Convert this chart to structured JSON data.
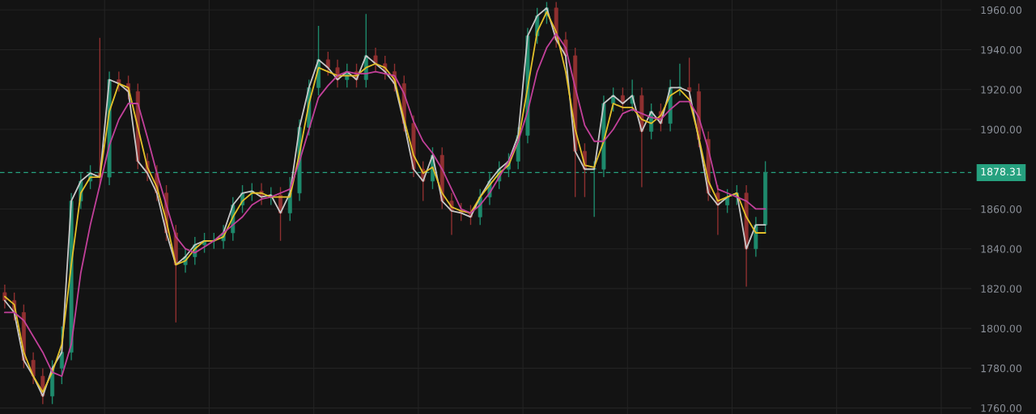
{
  "chart_data": {
    "type": "candlestick",
    "categories": [
      null,
      null,
      null,
      null,
      null,
      null,
      null,
      null,
      null,
      null,
      null,
      null,
      null,
      null,
      null,
      null,
      null,
      null,
      null,
      null,
      null,
      null,
      null,
      null,
      null,
      null,
      null,
      null,
      null,
      null,
      null,
      null,
      null,
      null,
      null,
      null,
      null,
      null,
      null,
      null,
      null,
      null,
      null,
      null,
      null,
      null,
      null,
      null,
      null,
      null,
      null,
      null,
      null,
      null,
      null,
      null,
      null,
      null,
      null,
      null,
      null,
      null,
      null,
      null,
      null,
      null,
      null,
      null,
      null,
      null,
      null,
      null,
      null,
      null,
      null,
      null,
      null,
      null,
      null,
      null,
      null
    ],
    "ohlc": [
      [
        1818,
        1822,
        1810,
        1814
      ],
      [
        1814,
        1818,
        1804,
        1808
      ],
      [
        1808,
        1812,
        1780,
        1784
      ],
      [
        1784,
        1788,
        1772,
        1776
      ],
      [
        1776,
        1780,
        1762,
        1766
      ],
      [
        1766,
        1784,
        1762,
        1780
      ],
      [
        1780,
        1801,
        1772,
        1788
      ],
      [
        1788,
        1868,
        1784,
        1864
      ],
      [
        1864,
        1878,
        1860,
        1874
      ],
      [
        1874,
        1882,
        1870,
        1878
      ],
      [
        1878,
        1946,
        1872,
        1876
      ],
      [
        1876,
        1929,
        1872,
        1925
      ],
      [
        1925,
        1929,
        1919,
        1923
      ],
      [
        1923,
        1927,
        1915,
        1919
      ],
      [
        1919,
        1923,
        1880,
        1884
      ],
      [
        1884,
        1888,
        1874,
        1878
      ],
      [
        1878,
        1882,
        1864,
        1868
      ],
      [
        1868,
        1872,
        1844,
        1848
      ],
      [
        1848,
        1852,
        1803,
        1832
      ],
      [
        1832,
        1840,
        1828,
        1836
      ],
      [
        1836,
        1846,
        1832,
        1842
      ],
      [
        1842,
        1848,
        1838,
        1844
      ],
      [
        1844,
        1848,
        1840,
        1844
      ],
      [
        1844,
        1852,
        1840,
        1848
      ],
      [
        1848,
        1866,
        1844,
        1862
      ],
      [
        1862,
        1872,
        1858,
        1868
      ],
      [
        1868,
        1873,
        1864,
        1869
      ],
      [
        1869,
        1873,
        1862,
        1866
      ],
      [
        1866,
        1871,
        1862,
        1867
      ],
      [
        1867,
        1871,
        1844,
        1858
      ],
      [
        1858,
        1876,
        1854,
        1868
      ],
      [
        1868,
        1905,
        1864,
        1901
      ],
      [
        1901,
        1925,
        1897,
        1921
      ],
      [
        1921,
        1952,
        1917,
        1935
      ],
      [
        1935,
        1939,
        1927,
        1931
      ],
      [
        1931,
        1935,
        1921,
        1925
      ],
      [
        1925,
        1933,
        1921,
        1929
      ],
      [
        1929,
        1933,
        1921,
        1925
      ],
      [
        1925,
        1958,
        1921,
        1937
      ],
      [
        1937,
        1941,
        1929,
        1933
      ],
      [
        1933,
        1937,
        1925,
        1929
      ],
      [
        1929,
        1933,
        1919,
        1923
      ],
      [
        1923,
        1927,
        1899,
        1903
      ],
      [
        1903,
        1907,
        1876,
        1880
      ],
      [
        1880,
        1884,
        1864,
        1874
      ],
      [
        1874,
        1891,
        1870,
        1887
      ],
      [
        1887,
        1891,
        1860,
        1864
      ],
      [
        1864,
        1868,
        1847,
        1859
      ],
      [
        1859,
        1863,
        1854,
        1858
      ],
      [
        1858,
        1862,
        1852,
        1856
      ],
      [
        1856,
        1870,
        1852,
        1866
      ],
      [
        1866,
        1878,
        1862,
        1874
      ],
      [
        1874,
        1884,
        1870,
        1880
      ],
      [
        1880,
        1888,
        1876,
        1884
      ],
      [
        1884,
        1901,
        1880,
        1897
      ],
      [
        1897,
        1951,
        1893,
        1947
      ],
      [
        1947,
        1961,
        1943,
        1957
      ],
      [
        1957,
        1964,
        1953,
        1961
      ],
      [
        1961,
        1964,
        1941,
        1945
      ],
      [
        1945,
        1949,
        1933,
        1937
      ],
      [
        1937,
        1941,
        1866,
        1889
      ],
      [
        1889,
        1893,
        1866,
        1880
      ],
      [
        1880,
        1884,
        1856,
        1880
      ],
      [
        1880,
        1917,
        1876,
        1913
      ],
      [
        1913,
        1921,
        1909,
        1917
      ],
      [
        1917,
        1921,
        1909,
        1913
      ],
      [
        1913,
        1925,
        1909,
        1917
      ],
      [
        1917,
        1921,
        1871,
        1899
      ],
      [
        1899,
        1913,
        1895,
        1909
      ],
      [
        1909,
        1913,
        1899,
        1903
      ],
      [
        1903,
        1925,
        1899,
        1921
      ],
      [
        1921,
        1933,
        1917,
        1921
      ],
      [
        1921,
        1936,
        1915,
        1919
      ],
      [
        1919,
        1923,
        1891,
        1895
      ],
      [
        1895,
        1899,
        1864,
        1868
      ],
      [
        1868,
        1872,
        1847,
        1862
      ],
      [
        1862,
        1870,
        1858,
        1866
      ],
      [
        1866,
        1872,
        1862,
        1868
      ],
      [
        1868,
        1872,
        1821,
        1840
      ],
      [
        1840,
        1856,
        1836,
        1852
      ],
      [
        1852,
        1884,
        1848,
        1878.31
      ]
    ],
    "series": [
      {
        "type": "line",
        "color": "#c8c8c8",
        "values": [
          1814,
          1808,
          1784,
          1776,
          1766,
          1780,
          1788,
          1864,
          1874,
          1878,
          1876,
          1925,
          1923,
          1919,
          1884,
          1878,
          1868,
          1848,
          1832,
          1836,
          1842,
          1844,
          1844,
          1848,
          1862,
          1868,
          1869,
          1866,
          1867,
          1858,
          1868,
          1901,
          1921,
          1935,
          1931,
          1925,
          1929,
          1925,
          1937,
          1933,
          1929,
          1923,
          1903,
          1880,
          1874,
          1887,
          1864,
          1859,
          1858,
          1856,
          1866,
          1874,
          1880,
          1884,
          1897,
          1947,
          1957,
          1961,
          1945,
          1937,
          1889,
          1880,
          1880,
          1913,
          1917,
          1913,
          1917,
          1899,
          1909,
          1903,
          1921,
          1921,
          1919,
          1895,
          1868,
          1862,
          1866,
          1868,
          1840,
          1852,
          1852
        ]
      },
      {
        "type": "line",
        "color": "#e3c02a",
        "values": [
          1816,
          1812,
          1788,
          1776,
          1768,
          1778,
          1792,
          1832,
          1868,
          1876,
          1876,
          1909,
          1923,
          1921,
          1901,
          1881,
          1871,
          1854,
          1832,
          1834,
          1840,
          1844,
          1844,
          1846,
          1856,
          1864,
          1868,
          1868,
          1866,
          1866,
          1866,
          1888,
          1913,
          1931,
          1929,
          1927,
          1927,
          1927,
          1931,
          1933,
          1931,
          1925,
          1905,
          1887,
          1878,
          1881,
          1868,
          1861,
          1859,
          1858,
          1866,
          1872,
          1878,
          1882,
          1894,
          1921,
          1949,
          1959,
          1949,
          1929,
          1900,
          1882,
          1881,
          1894,
          1913,
          1911,
          1911,
          1905,
          1903,
          1907,
          1917,
          1920,
          1915,
          1896,
          1874,
          1864,
          1866,
          1868,
          1856,
          1848,
          1848
        ]
      },
      {
        "type": "line",
        "color": "#c2409a",
        "values": [
          1808,
          1808,
          1804,
          1796,
          1788,
          1778,
          1776,
          1792,
          1828,
          1852,
          1872,
          1892,
          1905,
          1913,
          1913,
          1896,
          1878,
          1862,
          1846,
          1840,
          1838,
          1841,
          1844,
          1848,
          1852,
          1856,
          1862,
          1865,
          1866,
          1868,
          1870,
          1884,
          1900,
          1916,
          1922,
          1927,
          1929,
          1928,
          1928,
          1929,
          1928,
          1927,
          1918,
          1904,
          1894,
          1888,
          1880,
          1870,
          1860,
          1858,
          1862,
          1868,
          1876,
          1884,
          1894,
          1909,
          1929,
          1941,
          1948,
          1941,
          1921,
          1902,
          1894,
          1894,
          1900,
          1908,
          1910,
          1908,
          1906,
          1905,
          1910,
          1914,
          1914,
          1906,
          1890,
          1870,
          1868,
          1866,
          1864,
          1860,
          1860
        ]
      }
    ],
    "ylim": [
      1757,
      1965
    ],
    "yticks": [
      {
        "value": 1760,
        "label": "1760.00"
      },
      {
        "value": 1780,
        "label": "1780.00"
      },
      {
        "value": 1800,
        "label": "1800.00"
      },
      {
        "value": 1820,
        "label": "1820.00"
      },
      {
        "value": 1840,
        "label": "1840.00"
      },
      {
        "value": 1860,
        "label": "1860.00"
      },
      {
        "value": 1900,
        "label": "1900.00"
      },
      {
        "value": 1920,
        "label": "1920.00"
      },
      {
        "value": 1940,
        "label": "1940.00"
      },
      {
        "value": 1960,
        "label": "1960.00"
      }
    ],
    "ref_lines": [
      {
        "axis": "y",
        "value": 1878.31,
        "label": "1878.31",
        "color": "#26a17f",
        "line_style": "dashed"
      }
    ],
    "grid": true,
    "tick_labels": "y"
  }
}
